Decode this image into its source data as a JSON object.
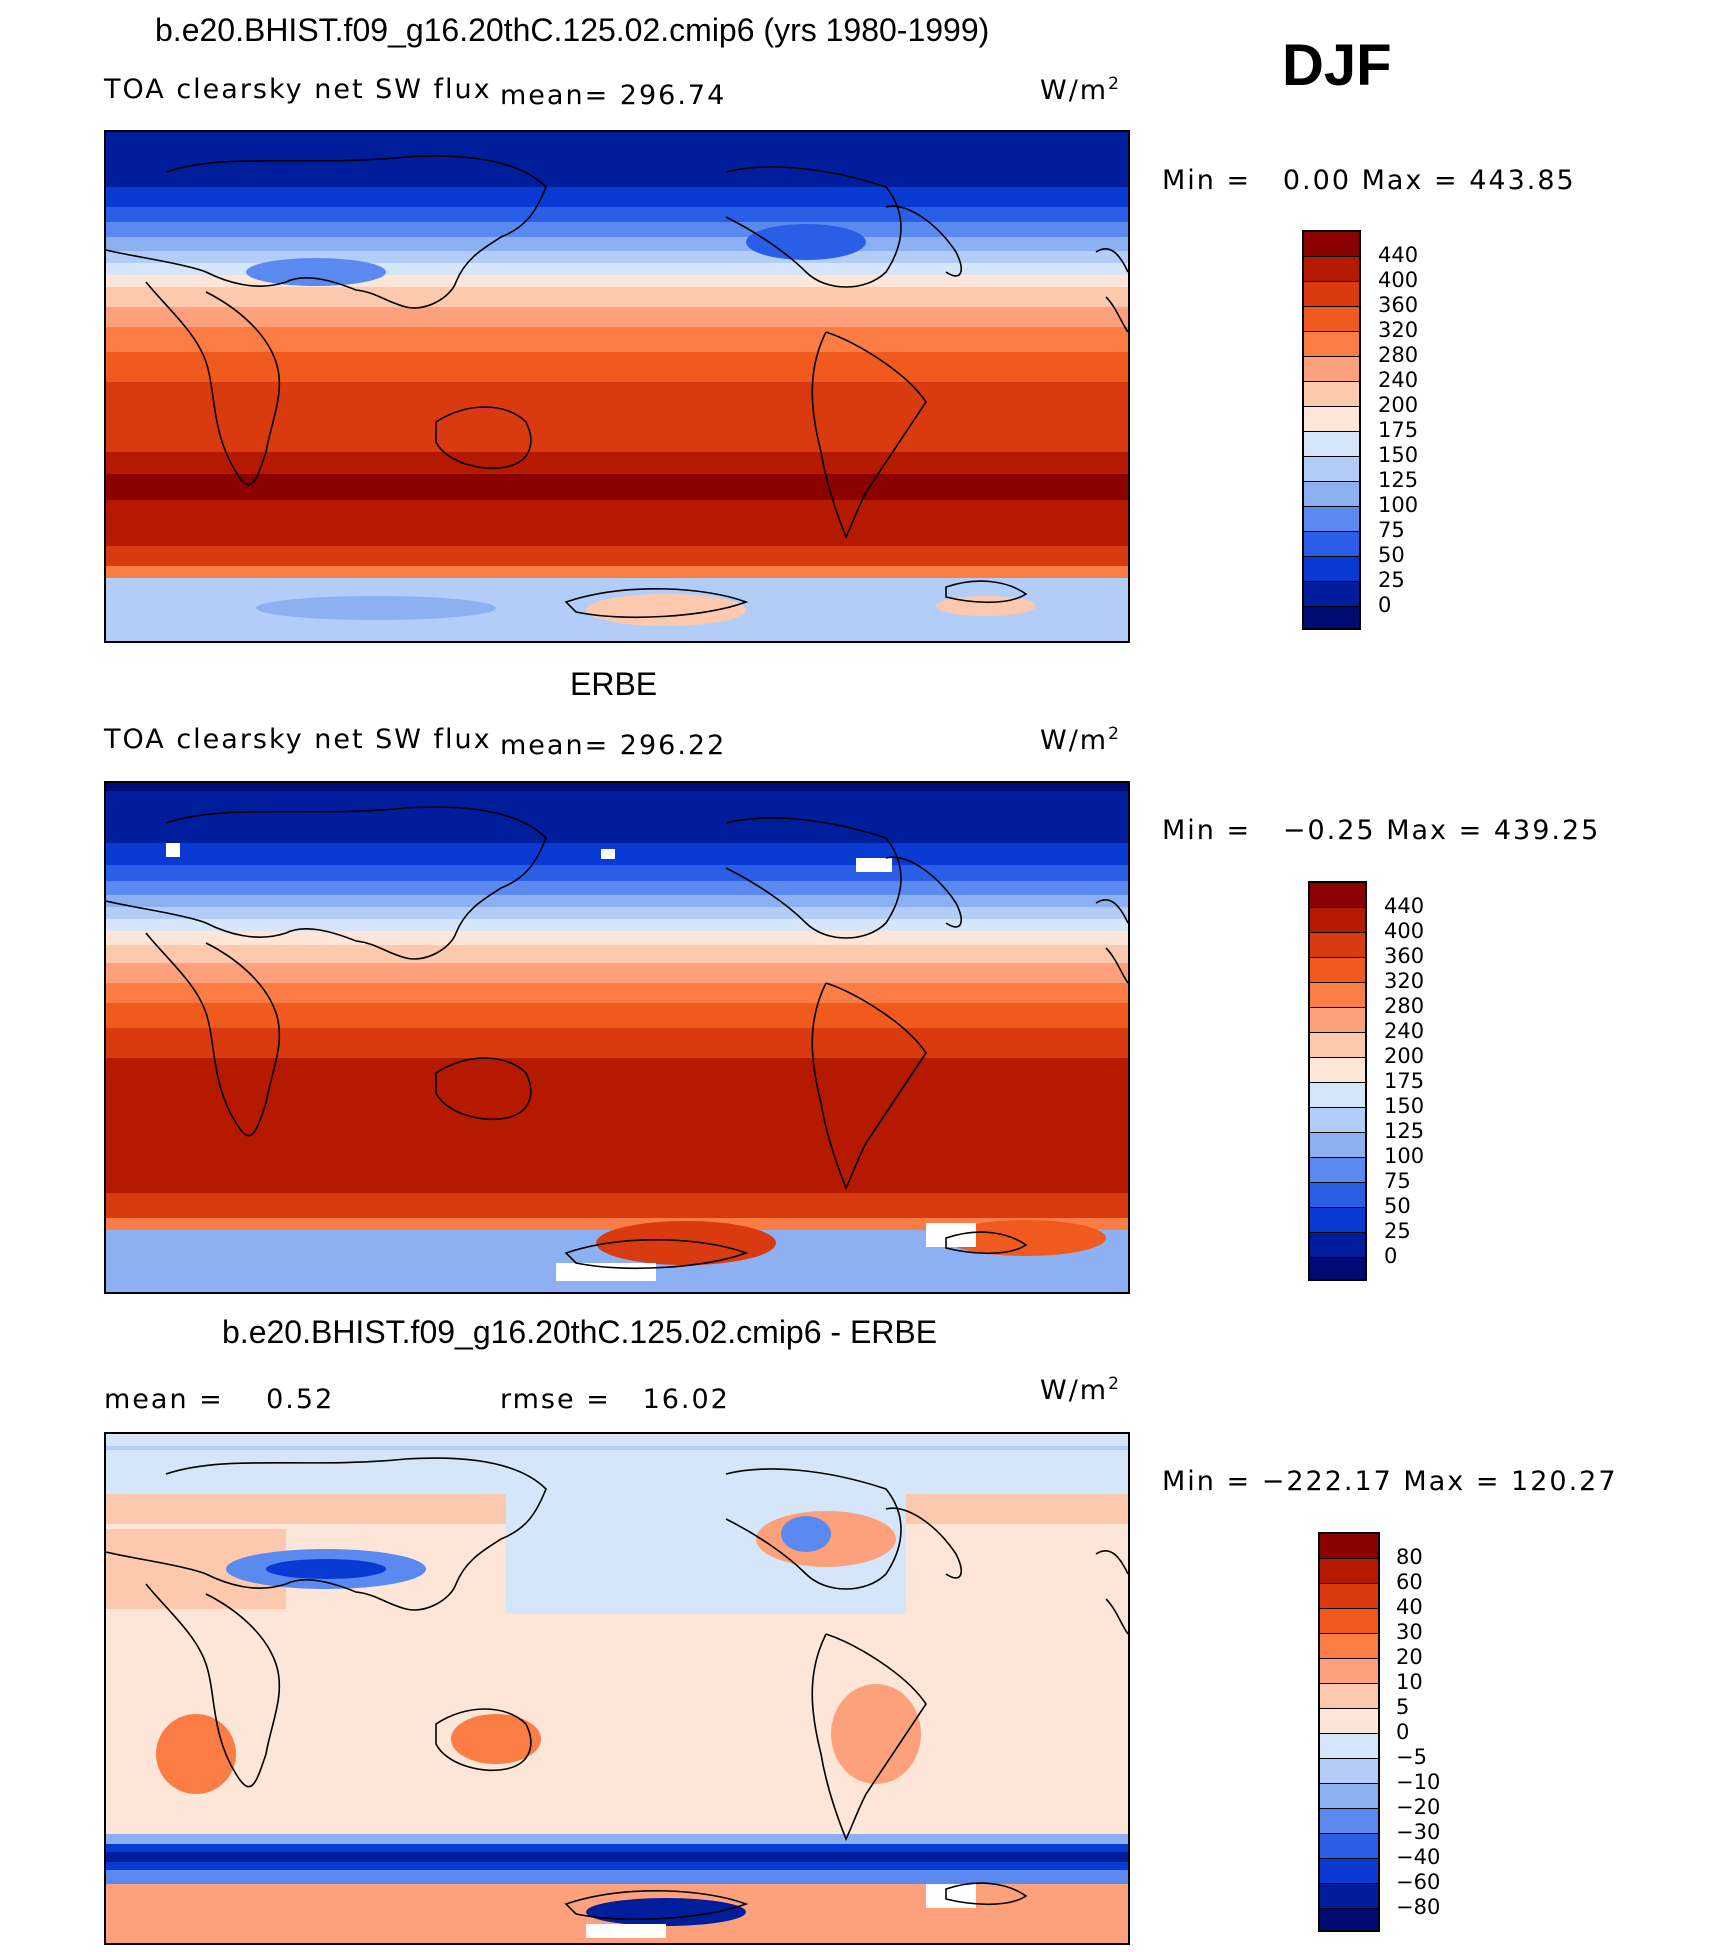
{
  "season": "DJF",
  "panels": [
    {
      "title": "b.e20.BHIST.f09_g16.20thC.125.02.cmip6 (yrs 1980-1999)",
      "left_label": "TOA clearsky net SW flux",
      "mean_label": "mean=",
      "mean_value": "296.74",
      "unit_base": "W/m",
      "unit_exp": "2",
      "min_label": "Min =",
      "min_value": "0.00",
      "max_label": "Max =",
      "max_value": "443.85",
      "colorbar_ticks": [
        "440",
        "400",
        "360",
        "320",
        "280",
        "240",
        "200",
        "175",
        "150",
        "125",
        "100",
        "75",
        "50",
        "25",
        "0"
      ]
    },
    {
      "title": "ERBE",
      "left_label": "TOA clearsky net SW flux",
      "mean_label": "mean=",
      "mean_value": "296.22",
      "unit_base": "W/m",
      "unit_exp": "2",
      "min_label": "Min =",
      "min_value": "−0.25",
      "max_label": "Max =",
      "max_value": "439.25",
      "colorbar_ticks": [
        "440",
        "400",
        "360",
        "320",
        "280",
        "240",
        "200",
        "175",
        "150",
        "125",
        "100",
        "75",
        "50",
        "25",
        "0"
      ]
    },
    {
      "title": "b.e20.BHIST.f09_g16.20thC.125.02.cmip6 - ERBE",
      "mean_label": "mean =",
      "mean_value": "0.52",
      "rmse_label": "rmse =",
      "rmse_value": "16.02",
      "unit_base": "W/m",
      "unit_exp": "2",
      "min_label": "Min =",
      "min_value": "−222.17",
      "max_label": "Max =",
      "max_value": "120.27",
      "colorbar_ticks": [
        "80",
        "60",
        "40",
        "30",
        "20",
        "10",
        "5",
        "0",
        "−5",
        "−10",
        "−20",
        "−30",
        "−40",
        "−60",
        "−80"
      ]
    }
  ],
  "colors": {
    "abs_scale": [
      "#8b0000",
      "#b51a00",
      "#d93a0f",
      "#f05a1e",
      "#fb7d45",
      "#fca17c",
      "#fdc9ae",
      "#fde6d8",
      "#d6e6fa",
      "#b2cef8",
      "#8db0f3",
      "#5a8af0",
      "#2b5ee6",
      "#0a3ad4",
      "#001e9c",
      "#000a73"
    ],
    "diff_scale": [
      "#8b0000",
      "#b51a00",
      "#d93a0f",
      "#f05a1e",
      "#fb7d45",
      "#fca17c",
      "#fdc9ae",
      "#fde6d8",
      "#d6e6fa",
      "#b2cef8",
      "#8db0f3",
      "#5a8af0",
      "#2b5ee6",
      "#0a3ad4",
      "#001e9c",
      "#000a73"
    ]
  }
}
